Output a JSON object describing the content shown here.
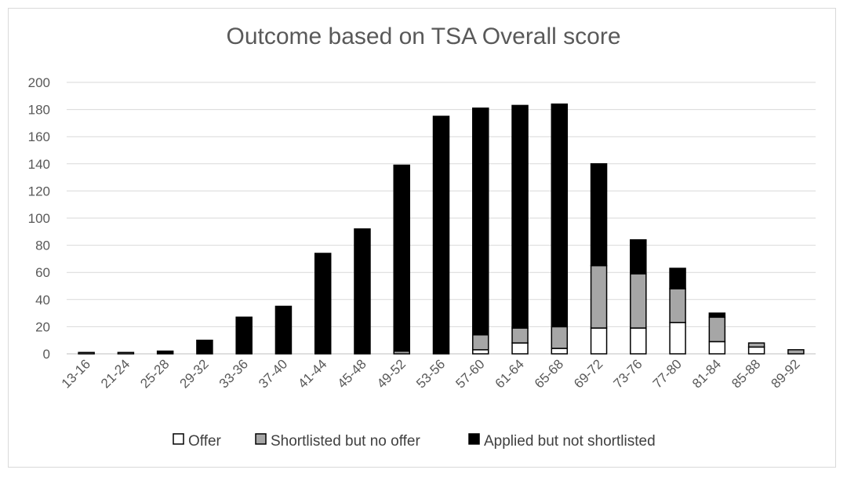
{
  "chart_data": {
    "type": "bar",
    "stacked": true,
    "title": "Outcome based on TSA Overall score",
    "xlabel": "",
    "ylabel": "",
    "ylim": [
      0,
      200
    ],
    "yticks": [
      "0",
      "20",
      "40",
      "60",
      "80",
      "100",
      "120",
      "140",
      "160",
      "180",
      "200"
    ],
    "grid": true,
    "legend_position": "bottom",
    "categories": [
      "13-16",
      "21-24",
      "25-28",
      "29-32",
      "33-36",
      "37-40",
      "41-44",
      "45-48",
      "49-52",
      "53-56",
      "57-60",
      "61-64",
      "65-68",
      "69-72",
      "73-76",
      "77-80",
      "81-84",
      "85-88",
      "89-92"
    ],
    "series": [
      {
        "name": "Offer",
        "color": "#ffffff",
        "values": [
          0,
          0,
          0,
          0,
          0,
          0,
          0,
          0,
          0,
          0,
          3,
          8,
          4,
          19,
          19,
          23,
          9,
          5,
          0
        ]
      },
      {
        "name": "Shortlisted but no offer",
        "color": "#a6a6a6",
        "values": [
          1,
          1,
          0,
          0,
          0,
          0,
          0,
          0,
          2,
          0,
          11,
          11,
          16,
          46,
          40,
          25,
          18,
          3,
          3
        ]
      },
      {
        "name": "Applied but not shortlisted",
        "color": "#000000",
        "values": [
          0,
          0,
          2,
          10,
          27,
          35,
          74,
          92,
          137,
          175,
          167,
          164,
          164,
          75,
          25,
          15,
          3,
          0,
          0
        ]
      }
    ]
  }
}
